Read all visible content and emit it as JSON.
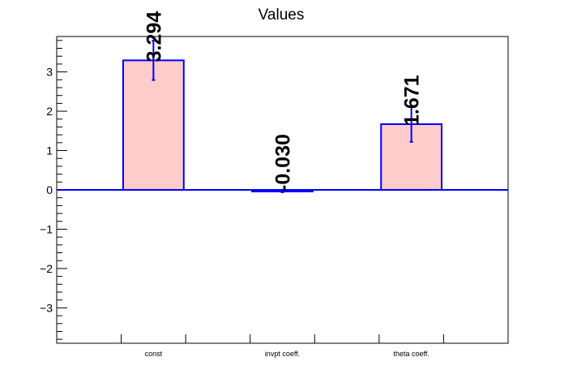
{
  "chart_data": {
    "type": "bar",
    "title": "Values",
    "categories": [
      "const",
      "invpt coeff.",
      "theta coeff."
    ],
    "values": [
      3.294,
      -0.03,
      1.671
    ],
    "value_labels": [
      "3.294",
      "-0.030",
      "1.671"
    ],
    "errors": [
      0.5,
      0.03,
      0.45
    ],
    "yticks": [
      -3,
      -2,
      -1,
      0,
      1,
      2,
      3
    ],
    "ytick_labels": [
      "−3",
      "−2",
      "−1",
      "0",
      "1",
      "2",
      "3"
    ],
    "ylim": [
      -3.9,
      3.9
    ],
    "xlabel": "",
    "ylabel": "",
    "grid": false,
    "colors": {
      "bar_fill": "#ffcccc",
      "bar_stroke": "#0000ff",
      "error": "#0000ff",
      "axis": "#000000"
    }
  }
}
